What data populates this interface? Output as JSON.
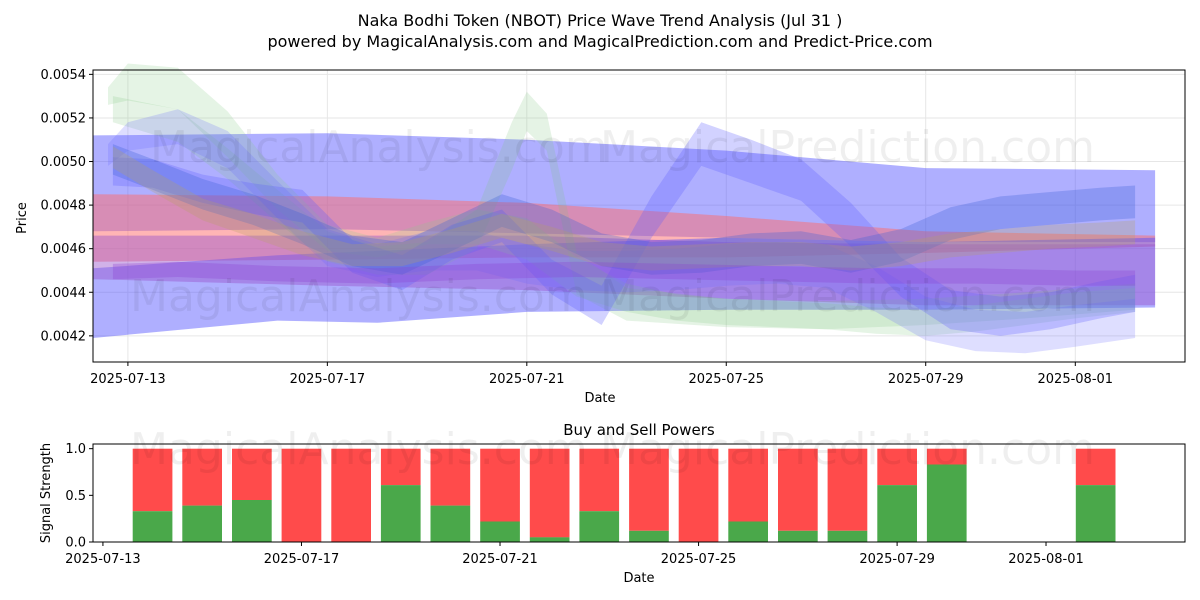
{
  "header": {
    "title": "Naka Bodhi Token (NBOT) Price Wave Trend Analysis (Jul 31 )",
    "subtitle": "powered by MagicalAnalysis.com and MagicalPrediction.com and Predict-Price.com"
  },
  "watermarks": {
    "analysis": "MagicalAnalysis.com",
    "prediction": "MagicalPrediction.com"
  },
  "colors": {
    "green": "#4aa84a",
    "red": "#ff4b4b",
    "grid": "#e6e6e6"
  },
  "chart_data": [
    {
      "type": "line",
      "title": "",
      "xlabel": "Date",
      "ylabel": "Price",
      "ylim": [
        0.00408,
        0.00542
      ],
      "x_range_days": [
        -0.7,
        21.2
      ],
      "grid": true,
      "x_ticks": [
        {
          "day": 0,
          "label": "2025-07-13"
        },
        {
          "day": 4,
          "label": "2025-07-17"
        },
        {
          "day": 8,
          "label": "2025-07-21"
        },
        {
          "day": 12,
          "label": "2025-07-25"
        },
        {
          "day": 16,
          "label": "2025-07-29"
        },
        {
          "day": 19,
          "label": "2025-08-01"
        }
      ],
      "y_ticks": [
        {
          "value": 0.0042,
          "label": "0.0042"
        },
        {
          "value": 0.0044,
          "label": "0.0044"
        },
        {
          "value": 0.0046,
          "label": "0.0046"
        },
        {
          "value": 0.0048,
          "label": "0.0048"
        },
        {
          "value": 0.005,
          "label": "0.0050"
        },
        {
          "value": 0.0052,
          "label": "0.0052"
        },
        {
          "value": 0.0054,
          "label": "0.0054"
        }
      ],
      "bands": [
        {
          "name": "blue-wide-upper",
          "color": "#4d4dff",
          "opacity": 0.45,
          "x": [
            -0.7,
            4,
            8,
            12,
            16,
            20.6
          ],
          "lower": [
            0.00468,
            0.00469,
            0.00467,
            0.00465,
            0.00463,
            0.00463
          ],
          "upper": [
            0.00512,
            0.00513,
            0.0051,
            0.00505,
            0.00497,
            0.00496
          ]
        },
        {
          "name": "red-wide",
          "color": "#ff6b6b",
          "opacity": 0.5,
          "x": [
            -0.7,
            4,
            8,
            12,
            16,
            20.6
          ],
          "lower": [
            0.00454,
            0.00455,
            0.00456,
            0.00456,
            0.00458,
            0.00461
          ],
          "upper": [
            0.00485,
            0.00484,
            0.00481,
            0.00475,
            0.00468,
            0.00466
          ]
        },
        {
          "name": "blue-wide-lower",
          "color": "#4d4dff",
          "opacity": 0.45,
          "x": [
            -0.7,
            3,
            5,
            8,
            12,
            16,
            20.6
          ],
          "lower": [
            0.00419,
            0.00427,
            0.00426,
            0.00431,
            0.00432,
            0.00432,
            0.00433
          ],
          "upper": [
            0.00451,
            0.00457,
            0.00459,
            0.00462,
            0.00465,
            0.00463,
            0.00465
          ]
        },
        {
          "name": "purple-wide",
          "color": "#9955cc",
          "opacity": 0.45,
          "x": [
            -0.7,
            4,
            8,
            12,
            16,
            20.6
          ],
          "lower": [
            0.00446,
            0.00443,
            0.00441,
            0.00437,
            0.00434,
            0.00434
          ],
          "upper": [
            0.00466,
            0.00466,
            0.00466,
            0.00463,
            0.00462,
            0.00462
          ]
        },
        {
          "name": "green-wave-a",
          "color": "#88cc88",
          "opacity": 0.22,
          "x": [
            -0.4,
            0,
            1,
            2,
            3,
            4,
            5,
            6,
            7,
            8,
            9,
            10,
            11,
            12,
            13,
            14,
            15,
            16,
            17,
            18,
            19,
            20.2
          ],
          "lower": [
            0.00526,
            0.00528,
            0.00524,
            0.00502,
            0.00478,
            0.00459,
            0.00456,
            0.00462,
            0.00462,
            0.00455,
            0.00438,
            0.00431,
            0.00427,
            0.00425,
            0.00424,
            0.00423,
            0.00421,
            0.0042,
            0.00422,
            0.00425,
            0.00428,
            0.00431
          ],
          "upper": [
            0.00534,
            0.00545,
            0.00543,
            0.00523,
            0.00494,
            0.00471,
            0.00465,
            0.00472,
            0.00478,
            0.00474,
            0.00456,
            0.00444,
            0.00439,
            0.00437,
            0.00436,
            0.00435,
            0.00433,
            0.00432,
            0.00434,
            0.00437,
            0.0044,
            0.00442
          ]
        },
        {
          "name": "green-wave-b",
          "color": "#7fc47f",
          "opacity": 0.2,
          "x": [
            -0.3,
            1,
            2,
            3,
            4,
            5,
            6,
            7,
            7.7,
            8,
            8.4,
            9,
            10,
            12,
            14,
            16,
            18,
            20.2
          ],
          "lower": [
            0.00518,
            0.00509,
            0.00492,
            0.00472,
            0.00454,
            0.00448,
            0.00448,
            0.0046,
            0.00496,
            0.00514,
            0.00505,
            0.00439,
            0.00427,
            0.00424,
            0.00423,
            0.00425,
            0.00428,
            0.00432
          ],
          "upper": [
            0.0053,
            0.00524,
            0.00506,
            0.00487,
            0.00468,
            0.00461,
            0.00463,
            0.00478,
            0.00518,
            0.00532,
            0.00522,
            0.00458,
            0.00442,
            0.00437,
            0.00436,
            0.00437,
            0.0044,
            0.00444
          ]
        },
        {
          "name": "blue-wave-a",
          "color": "#6a6aff",
          "opacity": 0.22,
          "x": [
            -0.4,
            0,
            1,
            2,
            3,
            4,
            5,
            6,
            7,
            8,
            9,
            10,
            11,
            12,
            13,
            14,
            15,
            16,
            17,
            18,
            19,
            20.2
          ],
          "lower": [
            0.00498,
            0.00505,
            0.00508,
            0.00497,
            0.00474,
            0.00452,
            0.00447,
            0.0045,
            0.0045,
            0.00444,
            0.00441,
            0.0044,
            0.00441,
            0.00443,
            0.00444,
            0.00442,
            0.00431,
            0.00418,
            0.00413,
            0.00412,
            0.00415,
            0.00419
          ],
          "upper": [
            0.00508,
            0.00518,
            0.00524,
            0.00514,
            0.00491,
            0.00469,
            0.00462,
            0.00468,
            0.00468,
            0.00462,
            0.00459,
            0.00459,
            0.0046,
            0.00462,
            0.00463,
            0.00462,
            0.00452,
            0.00438,
            0.00432,
            0.00431,
            0.00434,
            0.00437
          ]
        },
        {
          "name": "blue-wave-b",
          "color": "#5c5cff",
          "opacity": 0.28,
          "x": [
            -0.3,
            0.5,
            1.5,
            2.5,
            3.5,
            4.5,
            5.5,
            6.5,
            7.5,
            8.5,
            9.5,
            10.5,
            11.5,
            12.5,
            13.5,
            14.5,
            15.5,
            16.5,
            17.5,
            18.5,
            19.5,
            20.2
          ],
          "lower": [
            0.00489,
            0.00488,
            0.00481,
            0.00476,
            0.00472,
            0.00449,
            0.00441,
            0.00455,
            0.00463,
            0.00439,
            0.00425,
            0.00465,
            0.00498,
            0.0049,
            0.00482,
            0.00461,
            0.00438,
            0.00423,
            0.0042,
            0.00423,
            0.00428,
            0.00431
          ],
          "upper": [
            0.00502,
            0.00501,
            0.00494,
            0.0049,
            0.00487,
            0.00464,
            0.00457,
            0.00471,
            0.00478,
            0.00455,
            0.00443,
            0.00484,
            0.00518,
            0.0051,
            0.00501,
            0.00481,
            0.00456,
            0.00441,
            0.00438,
            0.0044,
            0.00445,
            0.00448
          ]
        },
        {
          "name": "blue-wave-c",
          "color": "#3d5fd6",
          "opacity": 0.3,
          "x": [
            -0.3,
            0.5,
            1.5,
            2.5,
            3.5,
            4.5,
            5.5,
            6.5,
            7.5,
            8.5,
            9.5,
            10.5,
            11.5,
            12.5,
            13.5,
            14.5,
            15.5,
            16.5,
            17.5,
            18.5,
            19.5,
            20.2
          ],
          "lower": [
            0.00494,
            0.00487,
            0.00478,
            0.00471,
            0.00462,
            0.00452,
            0.00448,
            0.00459,
            0.0047,
            0.00463,
            0.00452,
            0.00448,
            0.00449,
            0.00452,
            0.00453,
            0.00449,
            0.00454,
            0.00464,
            0.00469,
            0.00471,
            0.00473,
            0.00474
          ],
          "upper": [
            0.00508,
            0.00501,
            0.00492,
            0.00485,
            0.00476,
            0.00466,
            0.00463,
            0.00474,
            0.00485,
            0.00478,
            0.00467,
            0.00463,
            0.00464,
            0.00467,
            0.00468,
            0.00464,
            0.00469,
            0.00479,
            0.00484,
            0.00486,
            0.00488,
            0.00489
          ]
        },
        {
          "name": "olive-wave",
          "color": "#b8a060",
          "opacity": 0.28,
          "x": [
            -0.3,
            0.5,
            1.5,
            2.5,
            3.5,
            4.5,
            5.5,
            6.5,
            7.5,
            8.5,
            9.5,
            10.5,
            11.5,
            12.5,
            13.5,
            14.5,
            15.5,
            16.5,
            17.5,
            18.5,
            19.5,
            20.2
          ],
          "lower": [
            0.00497,
            0.00486,
            0.00473,
            0.00465,
            0.00457,
            0.00452,
            0.00452,
            0.00458,
            0.00465,
            0.00459,
            0.00452,
            0.0045,
            0.00451,
            0.00452,
            0.00452,
            0.0045,
            0.00452,
            0.00456,
            0.00458,
            0.0046,
            0.00461,
            0.00462
          ],
          "upper": [
            0.00507,
            0.00496,
            0.00483,
            0.00476,
            0.00468,
            0.00462,
            0.00463,
            0.00469,
            0.00476,
            0.0047,
            0.00463,
            0.00461,
            0.00462,
            0.00463,
            0.00463,
            0.00461,
            0.00463,
            0.00467,
            0.00469,
            0.00471,
            0.00472,
            0.00473
          ]
        },
        {
          "name": "purple-wave",
          "color": "#8a3fd0",
          "opacity": 0.3,
          "x": [
            -0.3,
            1,
            3,
            5,
            7,
            9,
            11,
            13,
            15,
            17,
            19,
            20.2
          ],
          "lower": [
            0.00446,
            0.00447,
            0.00445,
            0.00444,
            0.00446,
            0.00447,
            0.00446,
            0.00445,
            0.00444,
            0.00444,
            0.00443,
            0.00443
          ],
          "upper": [
            0.00453,
            0.00454,
            0.00452,
            0.00451,
            0.00453,
            0.00454,
            0.00453,
            0.00452,
            0.00451,
            0.00451,
            0.0045,
            0.0045
          ]
        }
      ]
    },
    {
      "type": "bar",
      "title": "Buy and Sell Powers",
      "xlabel": "Date",
      "ylabel": "Signal Strength",
      "ylim": [
        0,
        1.05
      ],
      "x_range_days": [
        -0.7,
        21.3
      ],
      "x_ticks": [
        {
          "day": -0.5,
          "label": "2025-07-13"
        },
        {
          "day": 3.5,
          "label": "2025-07-17"
        },
        {
          "day": 7.5,
          "label": "2025-07-21"
        },
        {
          "day": 11.5,
          "label": "2025-07-25"
        },
        {
          "day": 15.5,
          "label": "2025-07-29"
        },
        {
          "day": 18.5,
          "label": "2025-08-01"
        }
      ],
      "y_ticks": [
        {
          "value": 0.0,
          "label": "0.0"
        },
        {
          "value": 0.5,
          "label": "0.5"
        },
        {
          "value": 1.0,
          "label": "1.0"
        }
      ],
      "series": [
        {
          "name": "Buy",
          "color": "#4aa84a"
        },
        {
          "name": "Sell",
          "color": "#ff4b4b"
        }
      ],
      "bars": [
        {
          "day": 0.5,
          "buy": 0.33
        },
        {
          "day": 1.5,
          "buy": 0.39
        },
        {
          "day": 2.5,
          "buy": 0.45
        },
        {
          "day": 3.5,
          "buy": 0.0
        },
        {
          "day": 4.5,
          "buy": 0.0
        },
        {
          "day": 5.5,
          "buy": 0.61
        },
        {
          "day": 6.5,
          "buy": 0.39
        },
        {
          "day": 7.5,
          "buy": 0.22
        },
        {
          "day": 8.5,
          "buy": 0.05
        },
        {
          "day": 9.5,
          "buy": 0.33
        },
        {
          "day": 10.5,
          "buy": 0.12
        },
        {
          "day": 11.5,
          "buy": 0.0
        },
        {
          "day": 12.5,
          "buy": 0.22
        },
        {
          "day": 13.5,
          "buy": 0.12
        },
        {
          "day": 14.5,
          "buy": 0.12
        },
        {
          "day": 15.5,
          "buy": 0.61
        },
        {
          "day": 16.5,
          "buy": 0.83
        },
        {
          "day": 19.5,
          "buy": 0.61
        }
      ]
    }
  ]
}
